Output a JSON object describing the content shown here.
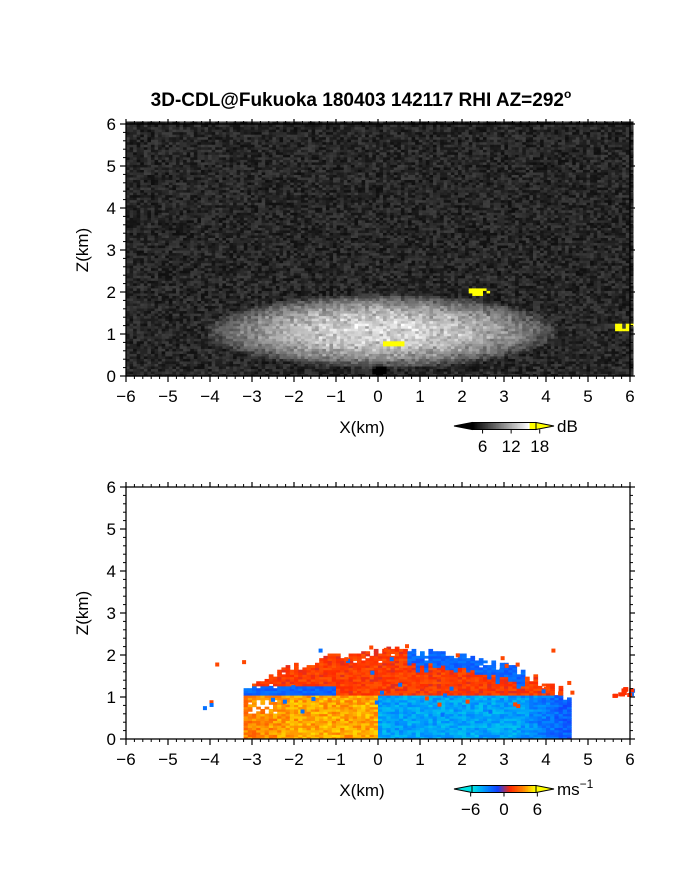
{
  "title": "3D-CDL@Fukuoka 180403 142117 RHI AZ=292",
  "title_superscript": "o",
  "chart_data": [
    {
      "type": "heatmap",
      "quantity": "backscatter intensity",
      "xlabel": "X(km)",
      "ylabel": "Z(km)",
      "xlim": [
        -6,
        6
      ],
      "ylim": [
        0,
        6
      ],
      "xticks": [
        "-6",
        "-5",
        "-4",
        "-3",
        "-2",
        "-1",
        "0",
        "1",
        "2",
        "3",
        "4",
        "5",
        "6"
      ],
      "yticks": [
        "0",
        "1",
        "2",
        "3",
        "4",
        "5",
        "6"
      ],
      "colorbar": {
        "unit": "dB",
        "ticks": [
          6,
          12,
          18
        ],
        "tick_labels": [
          "6",
          "12",
          "18"
        ],
        "range": [
          0,
          21
        ],
        "colors": [
          "#000000",
          "#ffffff",
          "#ffff00"
        ]
      },
      "background_color": "#141414",
      "features": [
        {
          "kind": "gray-echo-layer",
          "x_range": [
            -4.2,
            4.3
          ],
          "z_range": [
            0,
            2.1
          ],
          "peak_db": 14
        },
        {
          "kind": "strong-echo",
          "x": 2.35,
          "z": 2.0,
          "db": 20
        },
        {
          "kind": "strong-echo",
          "x": 5.8,
          "z": 1.15,
          "db": 20
        },
        {
          "kind": "strong-echo",
          "x": 0.35,
          "z": 0.75,
          "db": 19
        },
        {
          "kind": "near-field-blank",
          "x": 0.0,
          "z": 0.1
        }
      ]
    },
    {
      "type": "heatmap",
      "quantity": "Doppler velocity",
      "xlabel": "X(km)",
      "ylabel": "Z(km)",
      "xlim": [
        -6,
        6
      ],
      "ylim": [
        0,
        6
      ],
      "xticks": [
        "-6",
        "-5",
        "-4",
        "-3",
        "-2",
        "-1",
        "0",
        "1",
        "2",
        "3",
        "4",
        "5",
        "6"
      ],
      "yticks": [
        "0",
        "1",
        "2",
        "3",
        "4",
        "5",
        "6"
      ],
      "colorbar": {
        "unit": "ms",
        "unit_exponent": "−1",
        "ticks": [
          -6,
          0,
          6
        ],
        "tick_labels": [
          "−6",
          "0",
          "6"
        ],
        "range": [
          -9,
          9
        ],
        "colors": [
          "#00e5e5",
          "#0090ff",
          "#1040ff",
          "#ff2a00",
          "#ff8000",
          "#ffff00"
        ]
      },
      "background_color": "#ffffff",
      "features": [
        {
          "kind": "positive-flow",
          "x_range": [
            -3.2,
            -0.1
          ],
          "z_range": [
            0,
            1.0
          ],
          "velocity": 6
        },
        {
          "kind": "negative-flow",
          "x_range": [
            0.0,
            4.1
          ],
          "z_range": [
            0,
            1.0
          ],
          "velocity": -6
        },
        {
          "kind": "positive-flow",
          "x_range": [
            -2.6,
            4.5
          ],
          "z_range": [
            1.0,
            2.2
          ],
          "velocity": 2
        },
        {
          "kind": "negative-flow",
          "x_range": [
            -3.5,
            -1.0
          ],
          "z_range": [
            1.0,
            1.25
          ],
          "velocity": -3
        },
        {
          "kind": "negative-flow",
          "x_range": [
            0.7,
            3.5
          ],
          "z_range": [
            1.7,
            2.15
          ],
          "velocity": -3
        },
        {
          "kind": "positive-flow",
          "x": 5.8,
          "z": 1.15,
          "velocity": 2
        }
      ]
    }
  ]
}
